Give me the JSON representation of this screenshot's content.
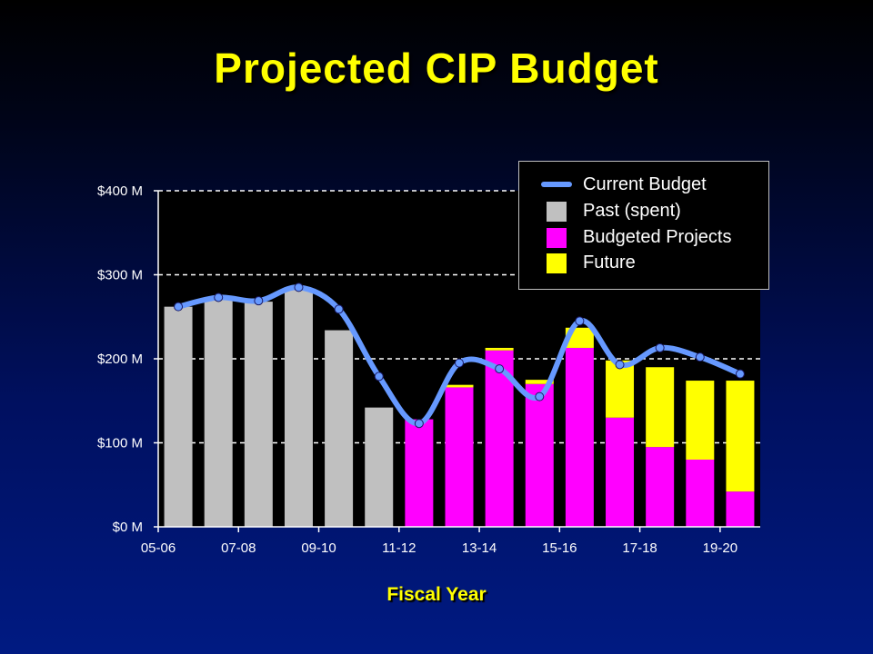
{
  "title": "Projected CIP Budget",
  "chart_data": {
    "type": "bar",
    "stacked": true,
    "xlabel": "Fiscal Year",
    "ylabel": "",
    "ylim": [
      0,
      400
    ],
    "y_ticks": [
      0,
      100,
      200,
      300,
      400
    ],
    "y_tick_labels": [
      "$0 M",
      "$100 M",
      "$200 M",
      "$300 M",
      "$400 M"
    ],
    "x_tick_labels": [
      "05-06",
      "07-08",
      "09-10",
      "11-12",
      "13-14",
      "15-16",
      "17-18",
      "19-20"
    ],
    "categories": [
      "05-06",
      "06-07",
      "07-08",
      "08-09",
      "09-10",
      "10-11",
      "11-12",
      "12-13",
      "13-14",
      "14-15",
      "15-16",
      "16-17",
      "17-18",
      "18-19",
      "19-20"
    ],
    "grid": true,
    "series": [
      {
        "name": "Past (spent)",
        "color": "#c0c0c0",
        "values": [
          262,
          272,
          268,
          284,
          234,
          142,
          0,
          0,
          0,
          0,
          0,
          0,
          0,
          0,
          0
        ]
      },
      {
        "name": "Budgeted Projects",
        "color": "#ff00ff",
        "values": [
          0,
          0,
          0,
          0,
          0,
          0,
          128,
          166,
          210,
          170,
          213,
          130,
          95,
          80,
          42
        ]
      },
      {
        "name": "Future",
        "color": "#ffff00",
        "values": [
          0,
          0,
          0,
          0,
          0,
          0,
          0,
          3,
          3,
          5,
          24,
          68,
          95,
          94,
          132
        ]
      }
    ],
    "line": {
      "name": "Current Budget",
      "color": "#6699ff",
      "values": [
        262,
        273,
        269,
        285,
        259,
        179,
        123,
        195,
        188,
        155,
        245,
        193,
        213,
        202,
        182
      ]
    },
    "legend_position": "top-right",
    "legend": [
      "Current Budget",
      "Past (spent)",
      "Budgeted Projects",
      "Future"
    ]
  }
}
